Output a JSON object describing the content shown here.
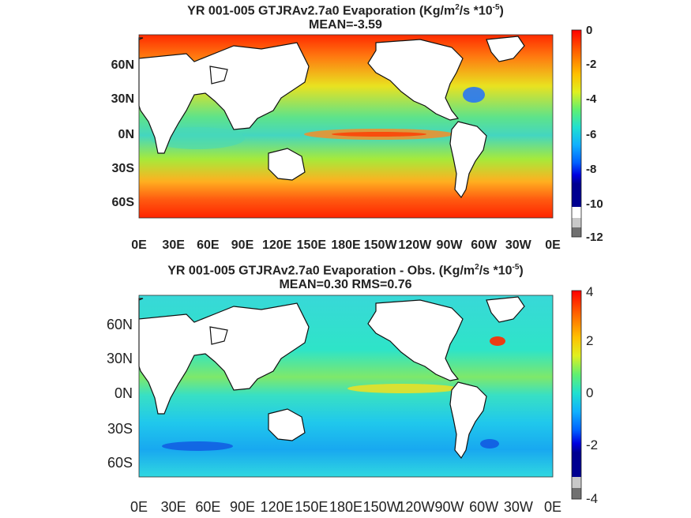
{
  "chart_data": [
    {
      "type": "heatmap",
      "title_line1_prefix": "YR 001-005 GTJRAv2.7a0  Evaporation (Kg/m",
      "title_sup1": "2",
      "title_mid": "/s *10",
      "title_sup2": "-5",
      "title_suffix": ")",
      "subtitle": "MEAN=-3.59",
      "ylabels": [
        "60N",
        "30N",
        "0N",
        "30S",
        "60S"
      ],
      "xlabels": [
        "0E",
        "30E",
        "60E",
        "90E",
        "120E",
        "150E",
        "180E",
        "150W",
        "120W",
        "90W",
        "60W",
        "30W",
        "0E"
      ],
      "colorbar_ticks": [
        "0",
        "-2",
        "-4",
        "-6",
        "-8",
        "-10",
        "-12"
      ],
      "clim": [
        -12,
        0
      ],
      "mean": -3.59
    },
    {
      "type": "heatmap",
      "title_line1_prefix": "YR 001-005 GTJRAv2.7a0 Evaporation - Obs. (Kg/m",
      "title_sup1": "2",
      "title_mid": "/s *10",
      "title_sup2": "-5",
      "title_suffix": ")",
      "subtitle": "MEAN=0.30   RMS=0.76",
      "ylabels": [
        "60N",
        "30N",
        "0N",
        "30S",
        "60S"
      ],
      "xlabels": [
        "0E",
        "30E",
        "60E",
        "90E",
        "120E",
        "150E",
        "180E",
        "150W",
        "120W",
        "90W",
        "60W",
        "30W",
        "0E"
      ],
      "colorbar_ticks": [
        "4",
        "2",
        "0",
        "-2",
        "-4"
      ],
      "clim": [
        -4,
        4
      ],
      "mean": 0.3,
      "rms": 0.76
    }
  ]
}
